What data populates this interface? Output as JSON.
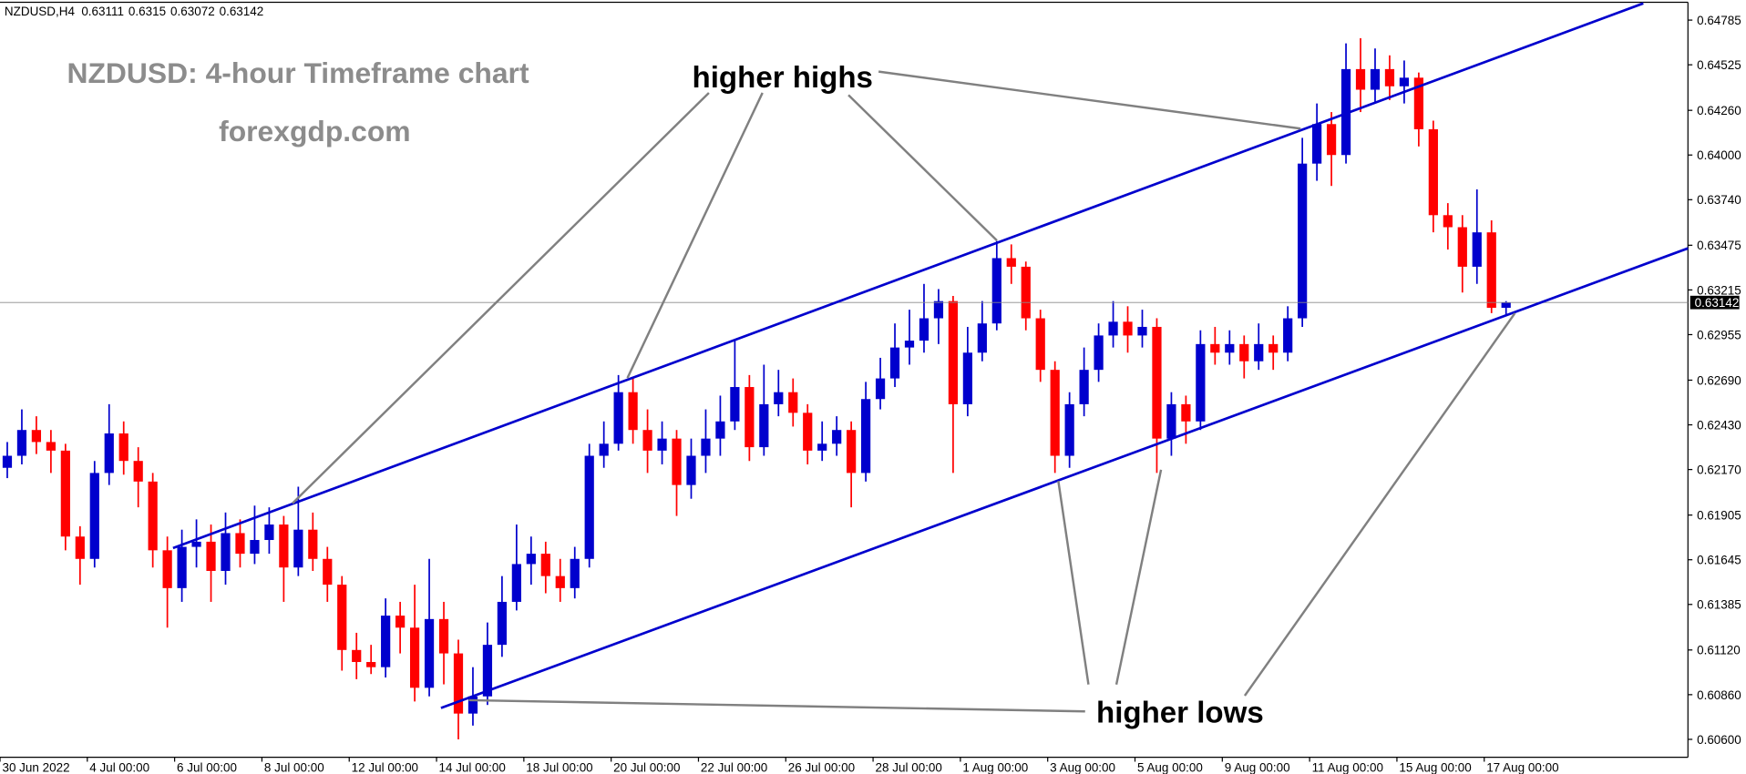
{
  "chart_data": {
    "type": "candlestick",
    "symbol": "NZDUSD,H4",
    "title": "NZDUSD: 4-hour Timeframe chart",
    "subtitle": "forexgdp.com",
    "annotations": [
      "higher highs",
      "higher lows"
    ],
    "up_color": "#0000cd",
    "down_color": "#ff0000",
    "open": [
      0.6218,
      0.6225,
      0.624,
      0.6233,
      0.6228,
      0.6178,
      0.6165,
      0.6215,
      0.6238,
      0.6222,
      0.621,
      0.617,
      0.6148,
      0.6172,
      0.6175,
      0.6158,
      0.618,
      0.6168,
      0.6176,
      0.6185,
      0.616,
      0.6182,
      0.6165,
      0.615,
      0.6112,
      0.6105,
      0.6102,
      0.6132,
      0.6125,
      0.609,
      0.613,
      0.611,
      0.6075,
      0.6085,
      0.6115,
      0.614,
      0.6162,
      0.6168,
      0.6155,
      0.6148,
      0.6165,
      0.6225,
      0.6232,
      0.6262,
      0.624,
      0.6228,
      0.6235,
      0.6208,
      0.6225,
      0.6235,
      0.6245,
      0.6265,
      0.623,
      0.6255,
      0.6262,
      0.625,
      0.6228,
      0.6232,
      0.624,
      0.6215,
      0.6258,
      0.627,
      0.6288,
      0.6292,
      0.6305,
      0.6315,
      0.6255,
      0.6285,
      0.6302,
      0.634,
      0.6335,
      0.6305,
      0.6275,
      0.6225,
      0.6255,
      0.6275,
      0.6295,
      0.6303,
      0.6295,
      0.63,
      0.6235,
      0.6255,
      0.6245,
      0.629,
      0.6285,
      0.629,
      0.628,
      0.629,
      0.6285,
      0.6305,
      0.6395,
      0.6418,
      0.64,
      0.645,
      0.6438,
      0.645,
      0.644,
      0.6445,
      0.6415,
      0.6365,
      0.6358,
      0.6335,
      0.6355,
      0.63111
    ],
    "high": [
      0.6233,
      0.6252,
      0.6248,
      0.624,
      0.6232,
      0.6184,
      0.6222,
      0.6255,
      0.6245,
      0.623,
      0.6215,
      0.6178,
      0.6182,
      0.6188,
      0.6185,
      0.6192,
      0.6188,
      0.6196,
      0.6195,
      0.619,
      0.6207,
      0.6192,
      0.6172,
      0.6155,
      0.6122,
      0.6115,
      0.6142,
      0.614,
      0.615,
      0.6165,
      0.614,
      0.6118,
      0.6102,
      0.6128,
      0.6155,
      0.6185,
      0.6178,
      0.6175,
      0.6165,
      0.6172,
      0.6232,
      0.6245,
      0.6272,
      0.627,
      0.6252,
      0.6245,
      0.624,
      0.6235,
      0.6252,
      0.626,
      0.6292,
      0.6272,
      0.6278,
      0.6275,
      0.627,
      0.6255,
      0.6245,
      0.6248,
      0.6245,
      0.6268,
      0.6282,
      0.6302,
      0.631,
      0.6325,
      0.6322,
      0.6318,
      0.63,
      0.6315,
      0.635,
      0.6348,
      0.6338,
      0.631,
      0.628,
      0.6262,
      0.6288,
      0.6302,
      0.6315,
      0.6312,
      0.631,
      0.6305,
      0.6262,
      0.626,
      0.6298,
      0.63,
      0.6298,
      0.6295,
      0.6302,
      0.6295,
      0.6312,
      0.641,
      0.643,
      0.6425,
      0.6465,
      0.6468,
      0.6462,
      0.6458,
      0.6455,
      0.6448,
      0.642,
      0.6372,
      0.6365,
      0.638,
      0.6362,
      0.6315
    ],
    "low": [
      0.6212,
      0.622,
      0.6226,
      0.6215,
      0.617,
      0.615,
      0.616,
      0.6208,
      0.6214,
      0.6195,
      0.616,
      0.6125,
      0.614,
      0.616,
      0.614,
      0.615,
      0.616,
      0.6162,
      0.6168,
      0.614,
      0.6155,
      0.6158,
      0.614,
      0.61,
      0.6095,
      0.6098,
      0.6096,
      0.611,
      0.6082,
      0.6085,
      0.6092,
      0.606,
      0.6068,
      0.608,
      0.6108,
      0.6135,
      0.615,
      0.6145,
      0.614,
      0.6142,
      0.616,
      0.6218,
      0.6228,
      0.6232,
      0.6215,
      0.622,
      0.619,
      0.62,
      0.6215,
      0.6225,
      0.624,
      0.6222,
      0.6225,
      0.6248,
      0.6242,
      0.622,
      0.6222,
      0.6225,
      0.6195,
      0.621,
      0.6252,
      0.6265,
      0.6278,
      0.6285,
      0.629,
      0.6215,
      0.6248,
      0.628,
      0.6298,
      0.6325,
      0.6298,
      0.6268,
      0.6215,
      0.6218,
      0.6248,
      0.6268,
      0.6288,
      0.6285,
      0.6288,
      0.6215,
      0.6225,
      0.6232,
      0.624,
      0.6278,
      0.6278,
      0.627,
      0.6275,
      0.6275,
      0.628,
      0.63,
      0.6385,
      0.6382,
      0.6395,
      0.6425,
      0.643,
      0.6432,
      0.643,
      0.6405,
      0.6355,
      0.6345,
      0.632,
      0.6325,
      0.6308,
      0.63072
    ],
    "close": [
      0.6225,
      0.624,
      0.6233,
      0.6228,
      0.6178,
      0.6165,
      0.6215,
      0.6238,
      0.6222,
      0.621,
      0.617,
      0.6148,
      0.6172,
      0.6175,
      0.6158,
      0.618,
      0.6168,
      0.6176,
      0.6185,
      0.616,
      0.6182,
      0.6165,
      0.615,
      0.6112,
      0.6105,
      0.6102,
      0.6132,
      0.6125,
      0.609,
      0.613,
      0.611,
      0.6075,
      0.6085,
      0.6115,
      0.614,
      0.6162,
      0.6168,
      0.6155,
      0.6148,
      0.6165,
      0.6225,
      0.6232,
      0.6262,
      0.624,
      0.6228,
      0.6235,
      0.6208,
      0.6225,
      0.6235,
      0.6245,
      0.6265,
      0.623,
      0.6255,
      0.6262,
      0.625,
      0.6228,
      0.6232,
      0.624,
      0.6215,
      0.6258,
      0.627,
      0.6288,
      0.6292,
      0.6305,
      0.6315,
      0.6255,
      0.6285,
      0.6302,
      0.634,
      0.6335,
      0.6305,
      0.6275,
      0.6225,
      0.6255,
      0.6275,
      0.6295,
      0.6303,
      0.6295,
      0.63,
      0.6235,
      0.6255,
      0.6245,
      0.629,
      0.6285,
      0.629,
      0.628,
      0.629,
      0.6285,
      0.6305,
      0.6395,
      0.6418,
      0.64,
      0.645,
      0.6438,
      0.645,
      0.644,
      0.6445,
      0.6415,
      0.6365,
      0.6358,
      0.6335,
      0.6355,
      0.63111,
      0.63142
    ],
    "xlim": [
      0,
      116
    ],
    "xticks": [
      {
        "value": 0,
        "label": "30 Jun 2022"
      },
      {
        "value": 6,
        "label": "4 Jul 00:00"
      },
      {
        "value": 12,
        "label": "6 Jul 00:00"
      },
      {
        "value": 18,
        "label": "8 Jul 00:00"
      },
      {
        "value": 24,
        "label": "12 Jul 00:00"
      },
      {
        "value": 30,
        "label": "14 Jul 00:00"
      },
      {
        "value": 36,
        "label": "18 Jul 00:00"
      },
      {
        "value": 42,
        "label": "20 Jul 00:00"
      },
      {
        "value": 48,
        "label": "22 Jul 00:00"
      },
      {
        "value": 54,
        "label": "26 Jul 00:00"
      },
      {
        "value": 60,
        "label": "28 Jul 00:00"
      },
      {
        "value": 66,
        "label": "1 Aug 00:00"
      },
      {
        "value": 72,
        "label": "3 Aug 00:00"
      },
      {
        "value": 78,
        "label": "5 Aug 00:00"
      },
      {
        "value": 84,
        "label": "9 Aug 00:00"
      },
      {
        "value": 90,
        "label": "11 Aug 00:00"
      },
      {
        "value": 96,
        "label": "15 Aug 00:00"
      },
      {
        "value": 102,
        "label": "17 Aug 00:00"
      }
    ],
    "ylim": [
      0.60496,
      0.64889
    ],
    "yticks": [
      {
        "value": 0.606,
        "label": "0.60600"
      },
      {
        "value": 0.6086,
        "label": "0.60860"
      },
      {
        "value": 0.6112,
        "label": "0.61120"
      },
      {
        "value": 0.61385,
        "label": "0.61385"
      },
      {
        "value": 0.61645,
        "label": "0.61645"
      },
      {
        "value": 0.61905,
        "label": "0.61905"
      },
      {
        "value": 0.6217,
        "label": "0.62170"
      },
      {
        "value": 0.6243,
        "label": "0.62430"
      },
      {
        "value": 0.6269,
        "label": "0.62690"
      },
      {
        "value": 0.62955,
        "label": "0.62955"
      },
      {
        "value": 0.63215,
        "label": "0.63215"
      },
      {
        "value": 0.63475,
        "label": "0.63475"
      },
      {
        "value": 0.6374,
        "label": "0.63740"
      },
      {
        "value": 0.64,
        "label": "0.64000"
      },
      {
        "value": 0.6426,
        "label": "0.64260"
      },
      {
        "value": 0.64525,
        "label": "0.64525"
      },
      {
        "value": 0.64785,
        "label": "0.64785"
      }
    ]
  }
}
